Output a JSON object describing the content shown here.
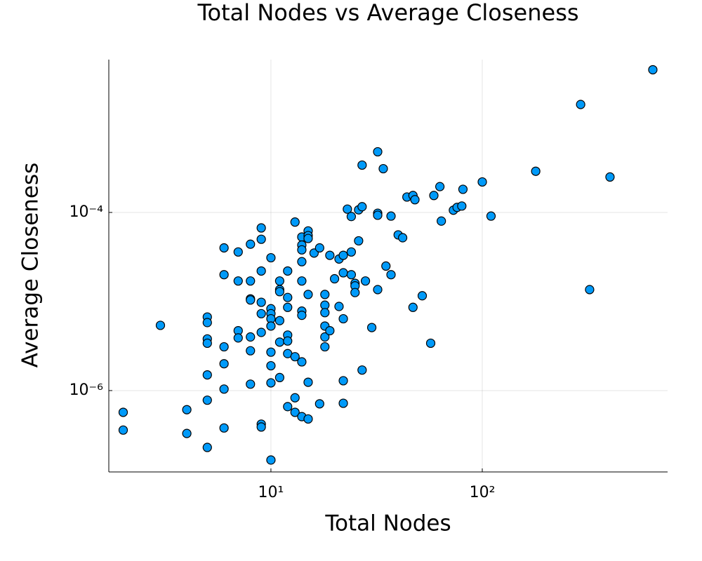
{
  "chart_data": {
    "type": "scatter",
    "title": "Total Nodes vs Average Closeness",
    "x_label": "Total Nodes",
    "y_label": "Average Closeness",
    "xscale": "log",
    "yscale": "log",
    "grid": true,
    "color": "#009af9",
    "xlim": [
      1.71,
      753
    ],
    "ylim": [
      1.22e-07,
      0.0052
    ],
    "xticks": [
      {
        "value": 10,
        "label": "10¹"
      },
      {
        "value": 100,
        "label": "10²"
      }
    ],
    "yticks": [
      {
        "value": 1e-06,
        "label": "10⁻⁶"
      },
      {
        "value": 0.0001,
        "label": "10⁻⁴"
      }
    ],
    "x": [
      2,
      2,
      3,
      4,
      4,
      5,
      5,
      5,
      5,
      5,
      5,
      5,
      6,
      6,
      6,
      6,
      6,
      6,
      7,
      7,
      7,
      7,
      8,
      8,
      8,
      8,
      8,
      8,
      8,
      9,
      9,
      9,
      9,
      9,
      9,
      9,
      9,
      10,
      10,
      10,
      10,
      10,
      10,
      10,
      10,
      10,
      11,
      11,
      11,
      11,
      11,
      11,
      12,
      12,
      12,
      12,
      12,
      12,
      12,
      13,
      13,
      13,
      13,
      14,
      14,
      14,
      14,
      14,
      14,
      14,
      14,
      14,
      15,
      15,
      15,
      15,
      15,
      15,
      16,
      17,
      17,
      18,
      18,
      18,
      18,
      18,
      18,
      19,
      19,
      20,
      21,
      21,
      22,
      22,
      22,
      22,
      22,
      23,
      24,
      24,
      24,
      25,
      25,
      25,
      26,
      26,
      27,
      27,
      27,
      28,
      30,
      32,
      32,
      32,
      32,
      34,
      35,
      37,
      37,
      40,
      42,
      44,
      47,
      47,
      48,
      52,
      57,
      59,
      63,
      64,
      73,
      76,
      80,
      81,
      100,
      110,
      179,
      292,
      322,
      402,
      641
    ],
    "values": [
      5.7e-07,
      3.6e-07,
      5.4e-06,
      6.1e-07,
      3.3e-07,
      6.7e-06,
      5.8e-06,
      3.8e-06,
      3.4e-06,
      1.5e-06,
      7.8e-07,
      2.3e-07,
      4e-05,
      2e-05,
      3.1e-06,
      2e-06,
      1.04e-06,
      3.8e-07,
      3.6e-05,
      1.7e-05,
      4.7e-06,
      3.9e-06,
      4.4e-05,
      1.7e-05,
      1.07e-05,
      1.04e-05,
      4e-06,
      2.8e-06,
      1.18e-06,
      6.7e-05,
      5e-05,
      2.2e-05,
      9.8e-06,
      7.3e-06,
      4.5e-06,
      4.2e-07,
      3.9e-07,
      3.1e-05,
      8.3e-06,
      7.3e-06,
      6.4e-06,
      5.3e-06,
      2.7e-06,
      1.9e-06,
      1.22e-06,
      1.66e-07,
      1.7e-05,
      1.36e-05,
      1.29e-05,
      6.1e-06,
      3.5e-06,
      1.4e-06,
      2.2e-05,
      1.11e-05,
      8.6e-06,
      4.2e-06,
      3.6e-06,
      2.6e-06,
      6.6e-07,
      7.8e-05,
      2.4e-06,
      8.3e-07,
      5.7e-07,
      5.3e-05,
      4.3e-05,
      3.8e-05,
      2.8e-05,
      1.7e-05,
      7.8e-06,
      7e-06,
      2.1e-06,
      5.1e-07,
      6.2e-05,
      5.5e-05,
      5.1e-05,
      1.2e-05,
      1.24e-06,
      4.8e-07,
      3.5e-05,
      4e-05,
      7.1e-07,
      1.2e-05,
      9.1e-06,
      7.5e-06,
      5.3e-06,
      4e-06,
      3.1e-06,
      3.3e-05,
      4.7e-06,
      1.8e-05,
      3e-05,
      8.8e-06,
      3.3e-05,
      2.1e-05,
      6.4e-06,
      1.29e-06,
      7.2e-07,
      0.000109,
      9e-05,
      3.6e-05,
      2e-05,
      1.6e-05,
      1.5e-05,
      1.26e-05,
      0.000107,
      4.8e-05,
      0.00034,
      0.000116,
      1.7e-06,
      1.7e-05,
      5.1e-06,
      0.00048,
      9.8e-05,
      9.3e-05,
      1.36e-05,
      0.00031,
      2.5e-05,
      9.1e-05,
      2e-05,
      5.6e-05,
      5.2e-05,
      0.000149,
      0.000155,
      8.6e-06,
      0.000139,
      1.16e-05,
      3.4e-06,
      0.000155,
      0.000195,
      8e-05,
      0.000106,
      0.000114,
      0.000118,
      0.000182,
      0.00022,
      9.1e-05,
      0.00029,
      0.00163,
      1.36e-05,
      0.00025,
      0.004
    ]
  }
}
